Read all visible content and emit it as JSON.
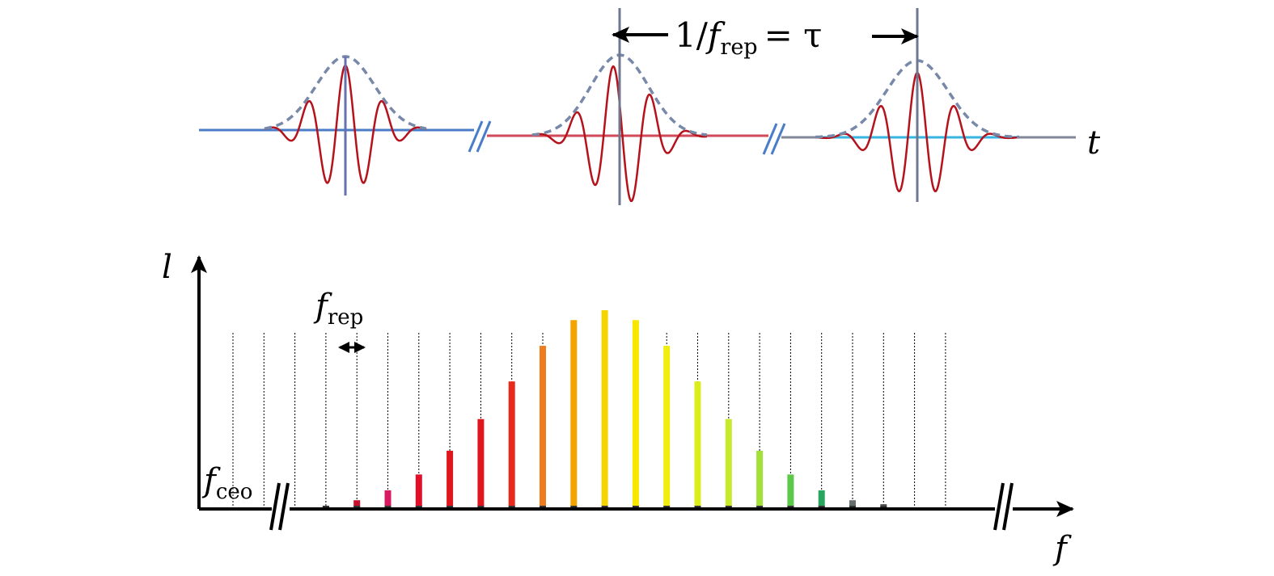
{
  "time_domain": {
    "period_label_main": "1/",
    "period_label_f": "f",
    "period_label_sub": "rep",
    "period_label_eq": "= τ",
    "axis_label": "t",
    "pulse_count": 3,
    "colors": {
      "carrier": "#b5121b",
      "envelope": "#7788a8",
      "axis_1": "#4a7cc9",
      "axis_2": "#d14a5a",
      "axis_3": "#808898",
      "axis_3_mid": "#36b5e0",
      "marker": "#6672b0"
    }
  },
  "spectrum": {
    "y_label": "l",
    "x_label": "f",
    "frep_label_f": "f",
    "frep_label_sub": "rep",
    "fceo_label_f": "f",
    "fceo_label_sub": "ceo",
    "comb_lines": [
      {
        "amplitude": 0.0,
        "color": ""
      },
      {
        "amplitude": 0.0,
        "color": ""
      },
      {
        "amplitude": 0.0,
        "color": ""
      },
      {
        "amplitude": 0.01,
        "color": "#333333"
      },
      {
        "amplitude": 0.04,
        "color": "#c8102e"
      },
      {
        "amplitude": 0.09,
        "color": "#d81b60"
      },
      {
        "amplitude": 0.17,
        "color": "#e0102a"
      },
      {
        "amplitude": 0.29,
        "color": "#e0161e"
      },
      {
        "amplitude": 0.45,
        "color": "#e0161e"
      },
      {
        "amplitude": 0.64,
        "color": "#e8291c"
      },
      {
        "amplitude": 0.82,
        "color": "#f07c20"
      },
      {
        "amplitude": 0.95,
        "color": "#f5a300"
      },
      {
        "amplitude": 1.0,
        "color": "#f5d500"
      },
      {
        "amplitude": 0.95,
        "color": "#f8e800"
      },
      {
        "amplitude": 0.82,
        "color": "#f0ee10"
      },
      {
        "amplitude": 0.64,
        "color": "#dced1c"
      },
      {
        "amplitude": 0.45,
        "color": "#c8e82c"
      },
      {
        "amplitude": 0.29,
        "color": "#a2e03a"
      },
      {
        "amplitude": 0.17,
        "color": "#5cc94a"
      },
      {
        "amplitude": 0.09,
        "color": "#2aa55e"
      },
      {
        "amplitude": 0.04,
        "color": "#667070"
      },
      {
        "amplitude": 0.02,
        "color": "#555555"
      },
      {
        "amplitude": 0.0,
        "color": ""
      },
      {
        "amplitude": 0.0,
        "color": ""
      }
    ]
  }
}
